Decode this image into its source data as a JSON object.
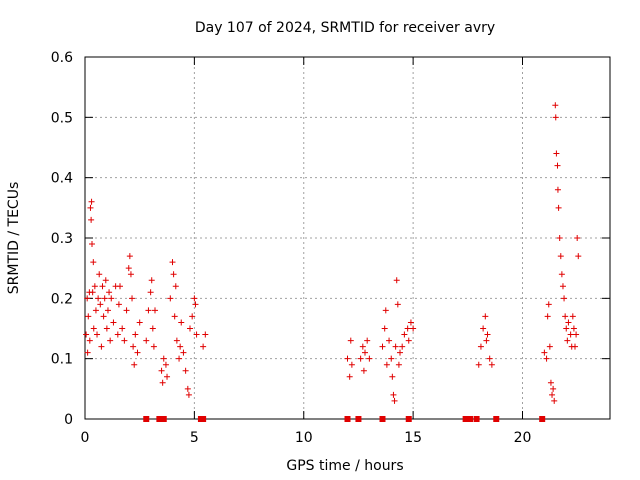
{
  "chart_data": {
    "type": "scatter",
    "title": "Day 107 of 2024, SRMTID for receiver avry",
    "xlabel": "GPS time / hours",
    "ylabel": "SRMTID / TECUs",
    "xlim": [
      0,
      24
    ],
    "ylim": [
      0,
      0.6
    ],
    "xticks": [
      0,
      5,
      10,
      15,
      20
    ],
    "xtick_labels": [
      "0",
      "5",
      "10",
      "15",
      "20"
    ],
    "yticks": [
      0,
      0.1,
      0.2,
      0.3,
      0.4,
      0.5,
      0.6
    ],
    "ytick_labels": [
      "0",
      "0.1",
      "0.2",
      "0.3",
      "0.4",
      "0.5",
      "0.6"
    ],
    "grid": true,
    "marker": "+",
    "series": [
      {
        "name": "SRMTID",
        "color": "#e00000",
        "points": [
          [
            0.05,
            0.14
          ],
          [
            0.1,
            0.2
          ],
          [
            0.12,
            0.11
          ],
          [
            0.15,
            0.17
          ],
          [
            0.2,
            0.21
          ],
          [
            0.22,
            0.13
          ],
          [
            0.25,
            0.35
          ],
          [
            0.28,
            0.33
          ],
          [
            0.3,
            0.36
          ],
          [
            0.32,
            0.29
          ],
          [
            0.35,
            0.21
          ],
          [
            0.38,
            0.26
          ],
          [
            0.4,
            0.15
          ],
          [
            0.45,
            0.22
          ],
          [
            0.5,
            0.18
          ],
          [
            0.55,
            0.14
          ],
          [
            0.6,
            0.2
          ],
          [
            0.65,
            0.24
          ],
          [
            0.7,
            0.19
          ],
          [
            0.75,
            0.12
          ],
          [
            0.8,
            0.22
          ],
          [
            0.85,
            0.17
          ],
          [
            0.9,
            0.2
          ],
          [
            0.95,
            0.23
          ],
          [
            1.0,
            0.15
          ],
          [
            1.05,
            0.18
          ],
          [
            1.1,
            0.21
          ],
          [
            1.15,
            0.13
          ],
          [
            1.2,
            0.2
          ],
          [
            1.3,
            0.16
          ],
          [
            1.4,
            0.22
          ],
          [
            1.5,
            0.14
          ],
          [
            1.55,
            0.19
          ],
          [
            1.6,
            0.22
          ],
          [
            1.7,
            0.15
          ],
          [
            1.8,
            0.13
          ],
          [
            1.9,
            0.18
          ],
          [
            2.0,
            0.25
          ],
          [
            2.05,
            0.27
          ],
          [
            2.1,
            0.24
          ],
          [
            2.15,
            0.2
          ],
          [
            2.2,
            0.12
          ],
          [
            2.25,
            0.09
          ],
          [
            2.3,
            0.14
          ],
          [
            2.4,
            0.11
          ],
          [
            2.5,
            0.16
          ],
          [
            2.8,
            0.13
          ],
          [
            2.9,
            0.18
          ],
          [
            3.0,
            0.21
          ],
          [
            3.05,
            0.23
          ],
          [
            3.1,
            0.15
          ],
          [
            3.15,
            0.12
          ],
          [
            3.2,
            0.18
          ],
          [
            3.5,
            0.08
          ],
          [
            3.55,
            0.06
          ],
          [
            3.6,
            0.1
          ],
          [
            3.7,
            0.09
          ],
          [
            3.75,
            0.07
          ],
          [
            3.9,
            0.2
          ],
          [
            4.0,
            0.26
          ],
          [
            4.05,
            0.24
          ],
          [
            4.1,
            0.17
          ],
          [
            4.15,
            0.22
          ],
          [
            4.2,
            0.13
          ],
          [
            4.3,
            0.1
          ],
          [
            4.35,
            0.12
          ],
          [
            4.4,
            0.16
          ],
          [
            4.5,
            0.11
          ],
          [
            4.6,
            0.08
          ],
          [
            4.7,
            0.05
          ],
          [
            4.75,
            0.04
          ],
          [
            4.8,
            0.15
          ],
          [
            4.9,
            0.17
          ],
          [
            5.0,
            0.2
          ],
          [
            5.05,
            0.19
          ],
          [
            5.1,
            0.14
          ],
          [
            5.4,
            0.12
          ],
          [
            5.5,
            0.14
          ],
          [
            12.0,
            0.1
          ],
          [
            12.1,
            0.07
          ],
          [
            12.15,
            0.13
          ],
          [
            12.2,
            0.09
          ],
          [
            12.6,
            0.1
          ],
          [
            12.7,
            0.12
          ],
          [
            12.75,
            0.08
          ],
          [
            12.8,
            0.11
          ],
          [
            12.9,
            0.13
          ],
          [
            13.0,
            0.1
          ],
          [
            13.6,
            0.12
          ],
          [
            13.7,
            0.15
          ],
          [
            13.75,
            0.18
          ],
          [
            13.8,
            0.09
          ],
          [
            13.9,
            0.13
          ],
          [
            14.0,
            0.1
          ],
          [
            14.05,
            0.07
          ],
          [
            14.1,
            0.04
          ],
          [
            14.15,
            0.03
          ],
          [
            14.2,
            0.12
          ],
          [
            14.25,
            0.23
          ],
          [
            14.3,
            0.19
          ],
          [
            14.35,
            0.09
          ],
          [
            14.4,
            0.11
          ],
          [
            14.5,
            0.12
          ],
          [
            14.6,
            0.14
          ],
          [
            14.75,
            0.15
          ],
          [
            14.8,
            0.13
          ],
          [
            14.9,
            0.16
          ],
          [
            15.0,
            0.15
          ],
          [
            18.0,
            0.09
          ],
          [
            18.1,
            0.12
          ],
          [
            18.2,
            0.15
          ],
          [
            18.3,
            0.17
          ],
          [
            18.35,
            0.13
          ],
          [
            18.4,
            0.14
          ],
          [
            18.5,
            0.1
          ],
          [
            18.6,
            0.09
          ],
          [
            21.0,
            0.11
          ],
          [
            21.1,
            0.1
          ],
          [
            21.15,
            0.17
          ],
          [
            21.2,
            0.19
          ],
          [
            21.25,
            0.12
          ],
          [
            21.3,
            0.06
          ],
          [
            21.35,
            0.04
          ],
          [
            21.4,
            0.05
          ],
          [
            21.45,
            0.03
          ],
          [
            21.5,
            0.52
          ],
          [
            21.52,
            0.5
          ],
          [
            21.55,
            0.44
          ],
          [
            21.6,
            0.42
          ],
          [
            21.62,
            0.38
          ],
          [
            21.65,
            0.35
          ],
          [
            21.7,
            0.3
          ],
          [
            21.75,
            0.27
          ],
          [
            21.8,
            0.24
          ],
          [
            21.85,
            0.22
          ],
          [
            21.9,
            0.2
          ],
          [
            21.95,
            0.17
          ],
          [
            22.0,
            0.15
          ],
          [
            22.05,
            0.13
          ],
          [
            22.1,
            0.16
          ],
          [
            22.2,
            0.14
          ],
          [
            22.25,
            0.12
          ],
          [
            22.3,
            0.17
          ],
          [
            22.35,
            0.15
          ],
          [
            22.4,
            0.12
          ],
          [
            22.45,
            0.14
          ],
          [
            22.5,
            0.3
          ],
          [
            22.55,
            0.27
          ]
        ]
      }
    ],
    "zero_markers": [
      2.8,
      3.4,
      3.6,
      5.3,
      5.4,
      12.0,
      12.5,
      13.6,
      14.8,
      17.4,
      17.6,
      17.9,
      18.8,
      20.9
    ]
  }
}
